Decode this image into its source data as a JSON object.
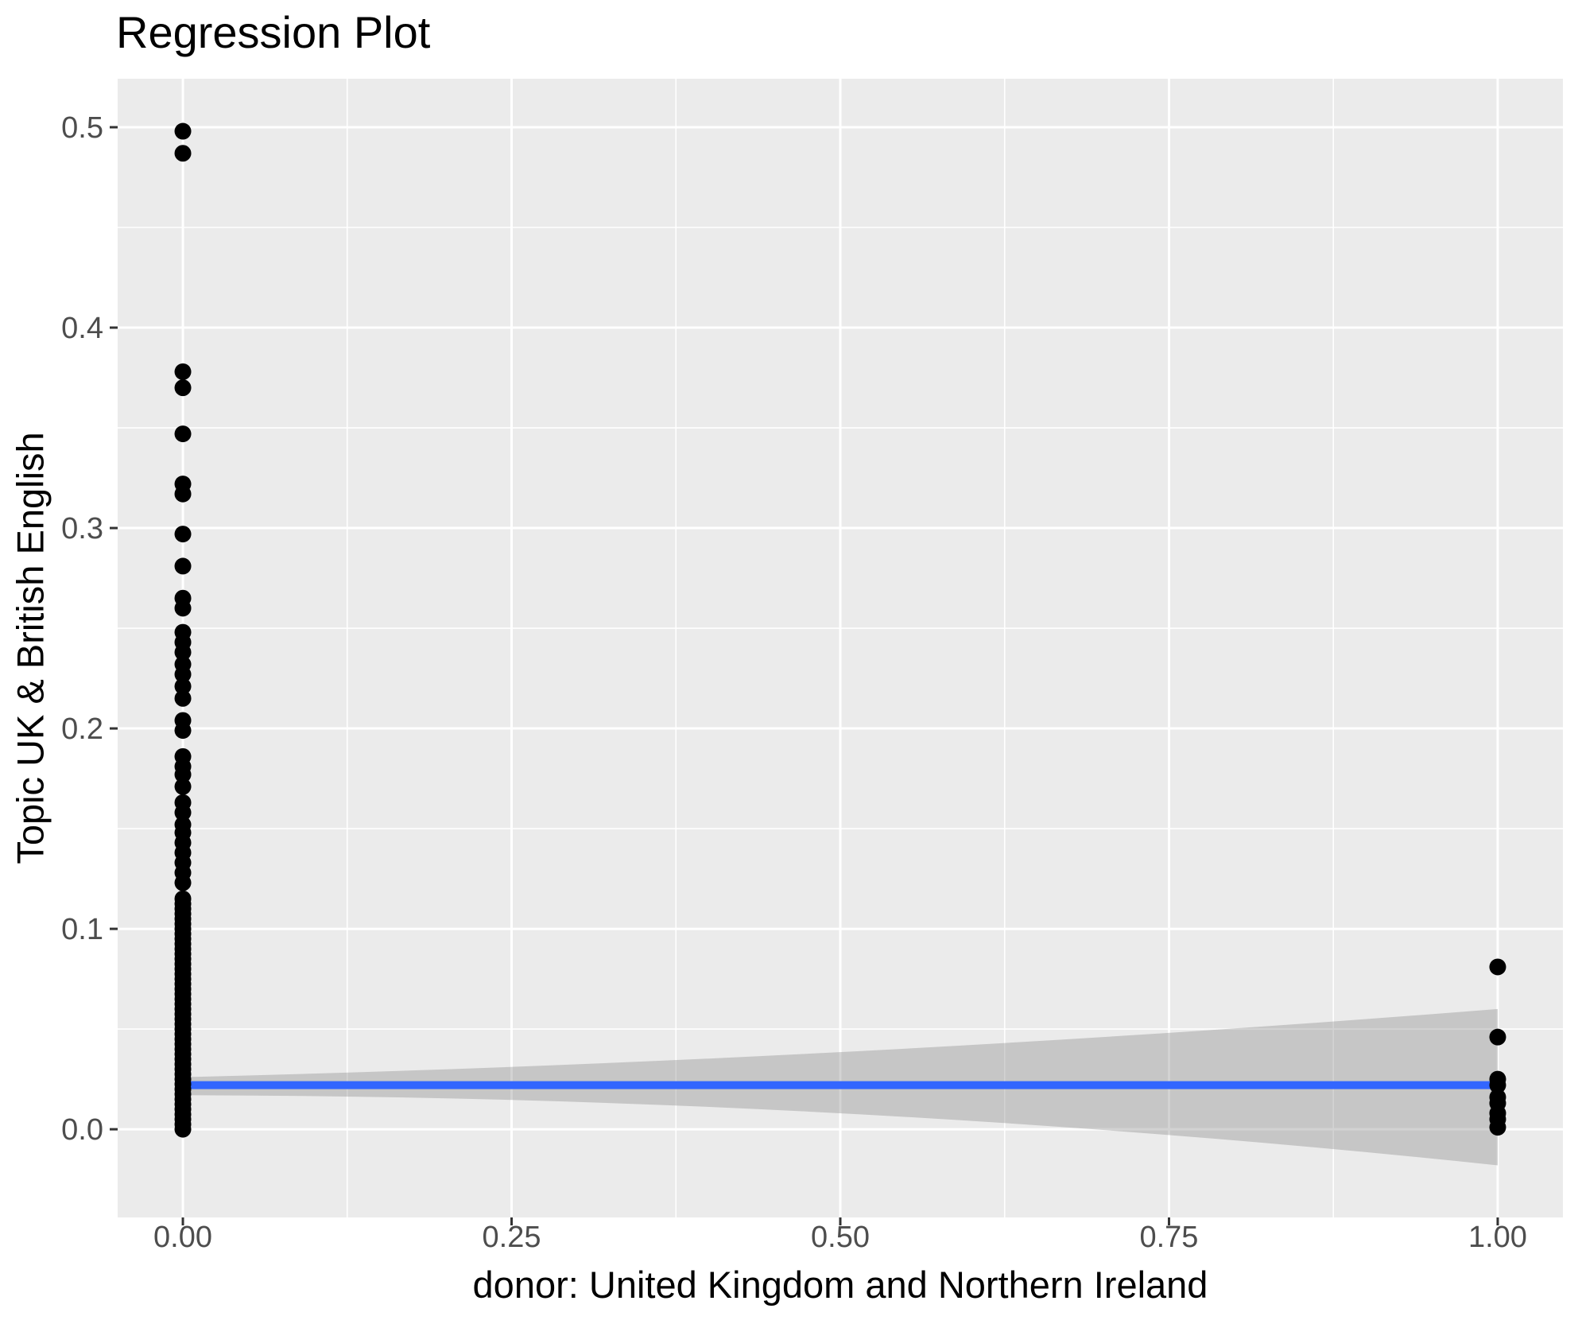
{
  "title": "Regression Plot",
  "chart_data": {
    "type": "scatter",
    "title": "Regression Plot",
    "xlabel": "donor: United Kingdom and Northern Ireland",
    "ylabel": "Topic UK & British English",
    "xlim": [
      -0.0496,
      1.0496
    ],
    "ylim": [
      -0.044,
      0.5242
    ],
    "grid": "major-and-minor, white on grey panel",
    "legend_position": "none",
    "x_ticks": {
      "values": [
        0,
        0.25,
        0.5,
        0.75,
        1.0
      ],
      "labels": [
        "0.00",
        "0.25",
        "0.50",
        "0.75",
        "1.00"
      ]
    },
    "y_ticks": {
      "values": [
        0,
        0.1,
        0.2,
        0.3,
        0.4,
        0.5
      ],
      "labels": [
        "0.0",
        "0.1",
        "0.2",
        "0.3",
        "0.4",
        "0.5"
      ]
    },
    "x_minor": [
      0.125,
      0.375,
      0.625,
      0.875
    ],
    "y_minor": [
      0.05,
      0.15,
      0.25,
      0.35,
      0.45
    ],
    "series": [
      {
        "name": "points-x0-discrete",
        "x": 0,
        "y": [
          0.498,
          0.487,
          0.378,
          0.37,
          0.347,
          0.322,
          0.317,
          0.297,
          0.281,
          0.265,
          0.26,
          0.248,
          0.243,
          0.238,
          0.232,
          0.227,
          0.221,
          0.215,
          0.204,
          0.199,
          0.186,
          0.181,
          0.177,
          0.171,
          0.163,
          0.158,
          0.152,
          0.148,
          0.143,
          0.138,
          0.133,
          0.128,
          0.123
        ]
      },
      {
        "name": "points-x0-dense-column",
        "x": 0,
        "dense": {
          "from": 0.0,
          "to": 0.117,
          "step": 0.0025
        }
      },
      {
        "name": "points-x1",
        "x": 1,
        "y": [
          0.081,
          0.046,
          0.025,
          0.022,
          0.016,
          0.013,
          0.008,
          0.005,
          0.001
        ]
      }
    ],
    "regression_line": {
      "x": [
        0,
        1
      ],
      "y": [
        0.022,
        0.022
      ]
    },
    "ci_band": {
      "x": [
        0,
        0.5,
        1
      ],
      "upper": [
        0.026,
        0.0385,
        0.06
      ],
      "lower": [
        0.017,
        0.008,
        -0.018
      ]
    },
    "point_radius_px": 10.5,
    "colors": {
      "panel": "#EBEBEB",
      "grid": "#FFFFFF",
      "point": "#000000",
      "line": "#3366FF",
      "band": "rgba(125,125,125,0.34)",
      "tick_mark": "#333333",
      "tick_label": "#4D4D4D",
      "titles": "#000000"
    }
  }
}
